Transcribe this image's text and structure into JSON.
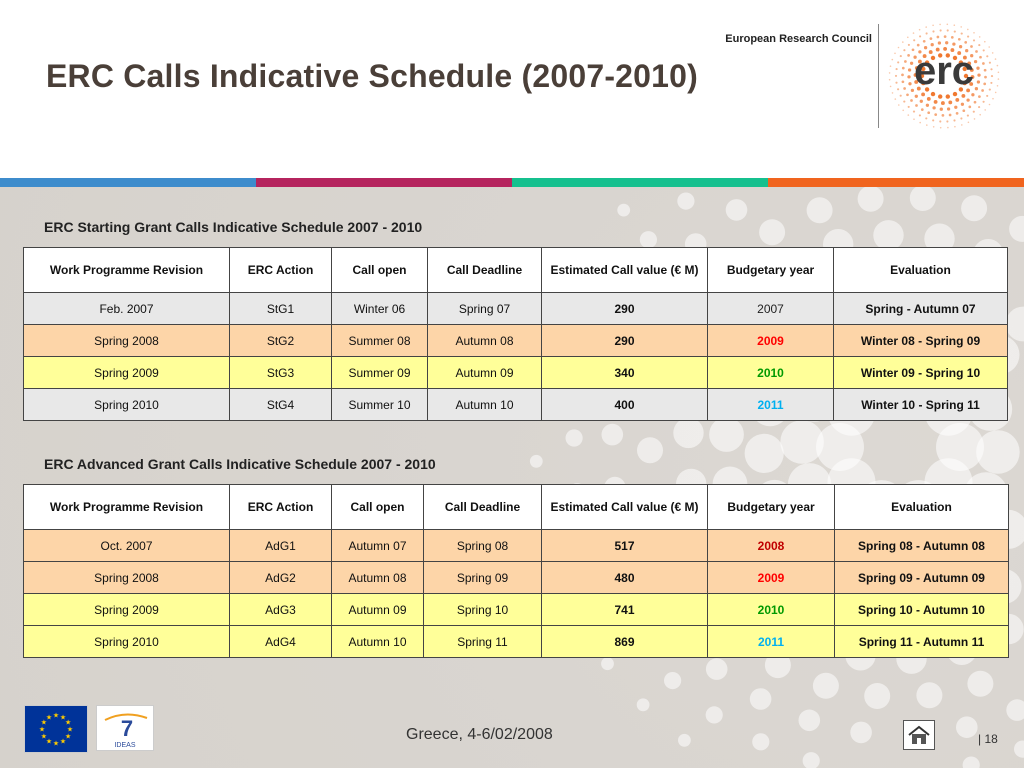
{
  "header": {
    "title": "ERC Calls Indicative Schedule (2007-2010)",
    "org_name": "European Research Council",
    "logo_text": "erc"
  },
  "colors": {
    "bar": [
      "#3d8ccc",
      "#b5245e",
      "#15c08e",
      "#f0641e"
    ],
    "year_2008": "#c00000",
    "year_2009": "#ff0000",
    "year_2010": "#009900",
    "year_2011": "#00b0f0",
    "title_color": "#4a3f38",
    "logo_orange": "#f07830"
  },
  "columns": [
    "Work Programme Revision",
    "ERC Action",
    "Call open",
    "Call Deadline",
    "Estimated Call value (€ M)",
    "Budgetary year",
    "Evaluation"
  ],
  "starting": {
    "title": "ERC Starting Grant Calls Indicative Schedule 2007 - 2010",
    "rows": [
      {
        "revision": "Feb. 2007",
        "action": "StG1",
        "open": "Winter 06",
        "deadline": "Spring 07",
        "value": "290",
        "year": "2007",
        "evaluation": "Spring - Autumn 07",
        "row_color": "grey",
        "year_color": "#222222",
        "year_bold": false
      },
      {
        "revision": "Spring 2008",
        "action": "StG2",
        "open": "Summer 08",
        "deadline": "Autumn 08",
        "value": "290",
        "year": "2009",
        "evaluation": "Winter 08 - Spring 09",
        "row_color": "orange",
        "year_color": "#ff0000",
        "year_bold": true
      },
      {
        "revision": "Spring 2009",
        "action": "StG3",
        "open": "Summer 09",
        "deadline": "Autumn 09",
        "value": "340",
        "year": "2010",
        "evaluation": "Winter 09 - Spring 10",
        "row_color": "yellow",
        "year_color": "#009900",
        "year_bold": true
      },
      {
        "revision": "Spring 2010",
        "action": "StG4",
        "open": "Summer 10",
        "deadline": "Autumn 10",
        "value": "400",
        "year": "2011",
        "evaluation": "Winter 10 - Spring 11",
        "row_color": "grey",
        "year_color": "#00b0f0",
        "year_bold": true
      }
    ]
  },
  "advanced": {
    "title": "ERC Advanced Grant Calls Indicative Schedule 2007 - 2010",
    "rows": [
      {
        "revision": "Oct. 2007",
        "action": "AdG1",
        "open": "Autumn 07",
        "deadline": "Spring 08",
        "value": "517",
        "year": "2008",
        "evaluation": "Spring 08 - Autumn 08",
        "row_color": "orange",
        "year_color": "#c00000",
        "year_bold": true
      },
      {
        "revision": "Spring 2008",
        "action": "AdG2",
        "open": "Autumn 08",
        "deadline": "Spring 09",
        "value": "480",
        "year": "2009",
        "evaluation": "Spring 09 - Autumn 09",
        "row_color": "orange",
        "year_color": "#ff0000",
        "year_bold": true
      },
      {
        "revision": "Spring 2009",
        "action": "AdG3",
        "open": "Autumn 09",
        "deadline": "Spring 10",
        "value": "741",
        "year": "2010",
        "evaluation": "Spring 10 - Autumn 10",
        "row_color": "yellow",
        "year_color": "#009900",
        "year_bold": true
      },
      {
        "revision": "Spring 2010",
        "action": "AdG4",
        "open": "Autumn 10",
        "deadline": "Spring 11",
        "value": "869",
        "year": "2011",
        "evaluation": "Spring 11 - Autumn 11",
        "row_color": "yellow",
        "year_color": "#00b0f0",
        "year_bold": true
      }
    ]
  },
  "footer": {
    "location_date": "Greece, 4-6/02/2008",
    "separator": "|",
    "page": "18",
    "fp7_label": "IDEAS",
    "fp7_number": "7"
  },
  "icons": {
    "home": "home-icon",
    "eu_flag": "eu-flag-icon",
    "fp7": "fp7-logo-icon"
  }
}
